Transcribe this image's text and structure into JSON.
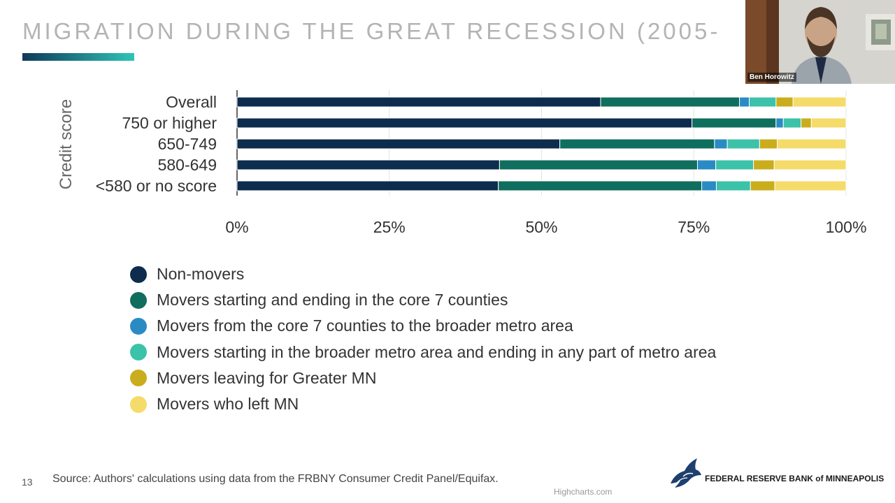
{
  "slide": {
    "title": "MIGRATION DURING THE GREAT RECESSION (2005-",
    "number": "13",
    "source": "Source: Authors' calculations using data from the FRBNY Consumer Credit Panel/Equifax.",
    "credits": "Highcharts.com"
  },
  "video": {
    "speaker_name": "Ben Horowitz"
  },
  "org": {
    "name": "FEDERAL RESERVE BANK of MINNEAPOLIS"
  },
  "colors": {
    "accent_gradient_start": "#0e3a5a",
    "accent_gradient_end": "#2ec4b6"
  },
  "chart_data": {
    "type": "bar",
    "orientation": "horizontal",
    "stacking": "percent",
    "categories": [
      "Overall",
      "750 or higher",
      "650-749",
      "580-649",
      "<580 or no score"
    ],
    "ylabel": "Credit score",
    "xlim": [
      0,
      100
    ],
    "xticks": [
      "0%",
      "25%",
      "50%",
      "75%",
      "100%"
    ],
    "grid": true,
    "legend_position": "bottom",
    "series": [
      {
        "name": "Non-movers",
        "color": "#0d2c4e",
        "values": [
          59.7,
          74.7,
          53.0,
          43.1,
          42.9
        ]
      },
      {
        "name": "Movers starting and ending in the core 7 counties",
        "color": "#0f6e5e",
        "values": [
          22.8,
          13.8,
          25.4,
          32.5,
          33.4
        ]
      },
      {
        "name": "Movers from the core 7 counties to the broader metro area",
        "color": "#2a8bc4",
        "values": [
          1.6,
          1.2,
          2.1,
          3.0,
          2.4
        ]
      },
      {
        "name": "Movers starting in the broader metro area and ending in any part of metro area",
        "color": "#3cc2a8",
        "values": [
          4.4,
          2.9,
          5.3,
          6.2,
          5.6
        ]
      },
      {
        "name": "Movers leaving for Greater MN",
        "color": "#c9ad1c",
        "values": [
          2.8,
          1.7,
          2.9,
          3.4,
          4.0
        ]
      },
      {
        "name": "Movers who left MN",
        "color": "#f5db6a",
        "values": [
          8.7,
          5.7,
          11.3,
          11.8,
          11.7
        ]
      }
    ]
  }
}
